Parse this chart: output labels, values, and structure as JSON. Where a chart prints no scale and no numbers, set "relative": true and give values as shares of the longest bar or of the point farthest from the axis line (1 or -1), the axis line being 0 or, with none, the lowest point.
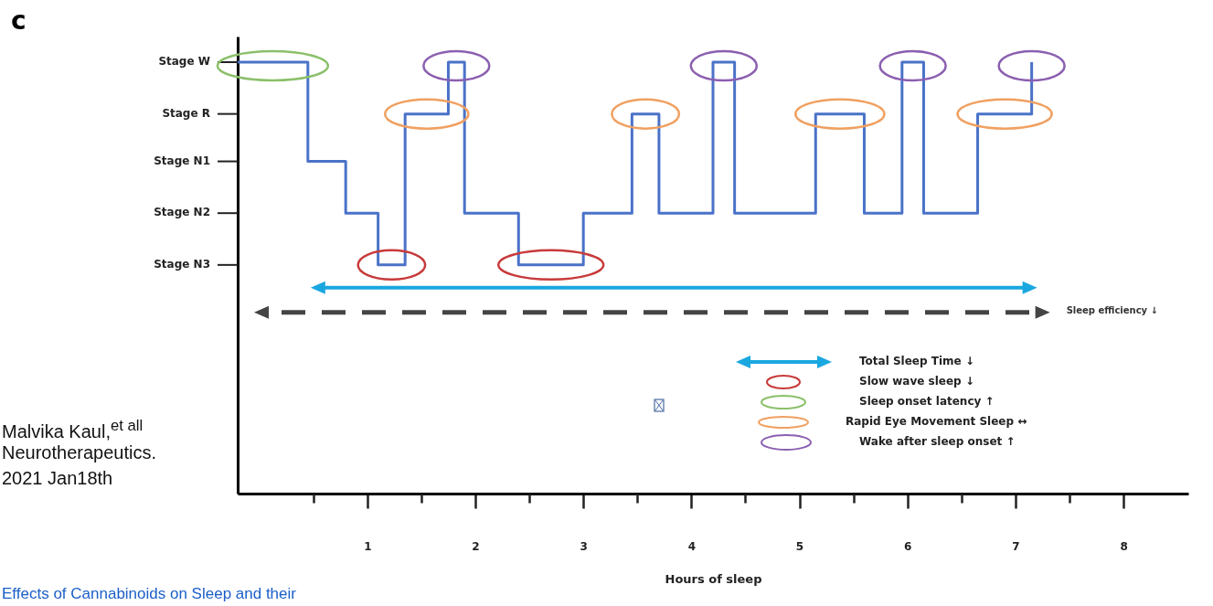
{
  "chart_data": {
    "type": "step",
    "title": "c",
    "xlabel": "Hours of sleep",
    "relative": true,
    "x": [
      -0.2,
      0.45,
      0.8,
      1.1,
      1.35,
      1.75,
      1.9,
      2.4,
      3.0,
      3.45,
      3.7,
      4.2,
      4.4,
      5.15,
      5.6,
      5.95,
      6.15,
      6.65,
      7.15
    ],
    "series": [
      {
        "color": "#4a72c8",
        "values": [
          1,
          0.77,
          0.65,
          0.53,
          0.88,
          1,
          0.65,
          0.53,
          0.65,
          0.88,
          0.65,
          1,
          0.65,
          0.88,
          0.65,
          1,
          0.65,
          0.88,
          1
        ]
      }
    ],
    "xlim": [
      -0.2,
      8.6
    ],
    "xticks": [
      {
        "value": 0.5,
        "label": null
      },
      1,
      {
        "value": 1.5,
        "label": null
      },
      2,
      {
        "value": 2.5,
        "label": null
      },
      3,
      {
        "value": 3.5,
        "label": null
      },
      4,
      {
        "value": 4.5,
        "label": null
      },
      5,
      {
        "value": 5.5,
        "label": null
      },
      6,
      {
        "value": 6.5,
        "label": null
      },
      7,
      {
        "value": 7.5,
        "label": null
      },
      8
    ],
    "annotations": [
      "Total Sleep Time ↓",
      "Slow wave sleep ↓",
      "Sleep onset latency ↑",
      "Rapid Eye Movement Sleep ↔",
      "Wake after sleep onset ↑",
      "Sleep efficiency ↓",
      "Malvika Kaul,$^{et all}$",
      "Neurotherapeutics.",
      "2021 Jan18th",
      "Effects of Cannabinoids on Sleep and their",
      "Stage W",
      "Stage R",
      "Stage N1",
      "Stage N2",
      "Stage N3"
    ]
  }
}
